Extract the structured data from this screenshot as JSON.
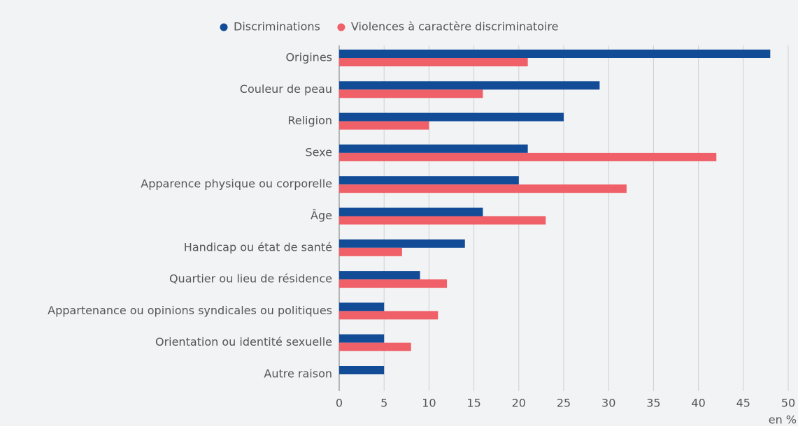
{
  "chart_data": {
    "type": "bar",
    "orientation": "horizontal",
    "categories": [
      "Origines",
      "Couleur de peau",
      "Religion",
      "Sexe",
      "Apparence physique ou corporelle",
      "Âge",
      "Handicap ou état de santé",
      "Quartier ou lieu de résidence",
      "Appartenance ou opinions syndicales ou politiques",
      "Orientation ou identité sexuelle",
      "Autre raison"
    ],
    "series": [
      {
        "name": "Discriminations",
        "color": "#124c97",
        "values": [
          48,
          29,
          25,
          21,
          20,
          16,
          14,
          9,
          5,
          5,
          5
        ]
      },
      {
        "name": "Violences à caractère discriminatoire",
        "color": "#ef6068",
        "values": [
          21,
          16,
          10,
          42,
          32,
          23,
          7,
          12,
          11,
          8,
          null
        ]
      }
    ],
    "xlim": [
      0,
      50
    ],
    "xticks": [
      0,
      5,
      10,
      15,
      20,
      25,
      30,
      35,
      40,
      45,
      50
    ],
    "x_label": "en %",
    "grid": true,
    "legend": "top"
  }
}
